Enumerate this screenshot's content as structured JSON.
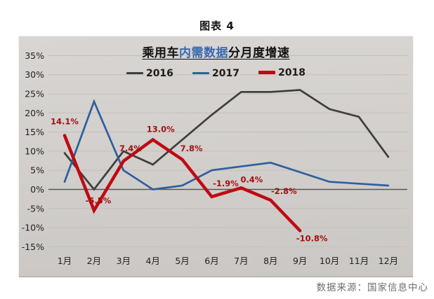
{
  "page": {
    "figure_label": "图表 4",
    "source": "数据来源：国家信息中心"
  },
  "chart": {
    "title": {
      "prefix": "乘用车",
      "highlight": "内需数据",
      "suffix": "分月度增速"
    },
    "highlight_color": "#3a68b0",
    "background_color": "#d2cfcc",
    "gridline_color": "#c2bfbc",
    "zero_axis_color": "#585858",
    "data_label_color": "#a31111"
  },
  "chart_data": {
    "type": "line",
    "title": "乘用车内需数据分月度增速",
    "categories": [
      "1月",
      "2月",
      "3月",
      "4月",
      "5月",
      "6月",
      "7月",
      "8月",
      "9月",
      "10月",
      "11月",
      "12月"
    ],
    "y_ticks": [
      "35%",
      "30%",
      "25%",
      "20%",
      "15%",
      "10%",
      "5%",
      "0%",
      "-5%",
      "-10%",
      "-15%"
    ],
    "ylim": [
      -15,
      35
    ],
    "grid": true,
    "legend_position": "top",
    "series": [
      {
        "name": "2016",
        "color": "#3d3d3d",
        "values": [
          9.5,
          0,
          10,
          6.5,
          13,
          19.5,
          25.5,
          25.5,
          26,
          21,
          19,
          8.5
        ]
      },
      {
        "name": "2017",
        "color": "#2e5f9e",
        "values": [
          2,
          23,
          5,
          0,
          1,
          5,
          6,
          7,
          4.5,
          2,
          1.5,
          1
        ]
      },
      {
        "name": "2018",
        "color": "#bf0a12",
        "values": [
          14.1,
          -5.5,
          7.4,
          13.0,
          7.8,
          -1.9,
          0.4,
          -2.8,
          -10.8,
          null,
          null,
          null
        ],
        "point_labels": [
          "14.1%",
          "-5.5%",
          "7.4%",
          "13.0%",
          "7.8%",
          "-1.9%",
          "0.4%",
          "-2.8%",
          "-10.8%"
        ]
      }
    ]
  }
}
